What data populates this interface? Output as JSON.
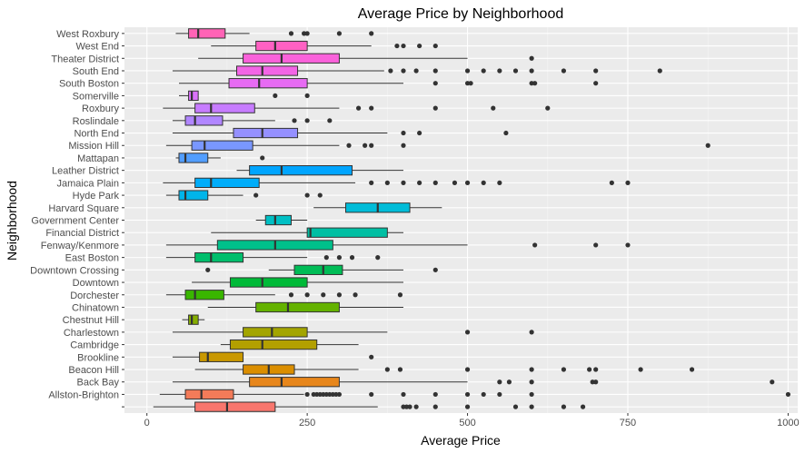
{
  "chart_data": {
    "type": "boxplot",
    "title": "Average Price by Neighborhood",
    "xlabel": "Average Price",
    "ylabel": "Neighborhood",
    "xlim": [
      -35,
      1015
    ],
    "xticks": [
      0,
      250,
      500,
      750,
      1000
    ],
    "xtick_labels": [
      "0",
      "250",
      "500",
      "750",
      "1000"
    ],
    "grid": true,
    "legend": "none",
    "series": [
      {
        "category": "",
        "color": "#F8766D",
        "whisker_low": 10,
        "q1": 75,
        "median": 125,
        "q3": 200,
        "whisker_high": 360,
        "outliers": [
          400,
          405,
          410,
          420,
          450,
          500,
          575,
          600,
          650,
          680
        ]
      },
      {
        "category": "Allston-Brighton",
        "color": "#F37B59",
        "whisker_low": 20,
        "q1": 60,
        "median": 85,
        "q3": 135,
        "whisker_high": 245,
        "outliers": [
          250,
          260,
          265,
          270,
          275,
          280,
          285,
          290,
          295,
          300,
          350,
          400,
          450,
          500,
          525,
          550,
          600,
          1000
        ]
      },
      {
        "category": "Back Bay",
        "color": "#E7861B",
        "whisker_low": 40,
        "q1": 160,
        "median": 210,
        "q3": 300,
        "whisker_high": 500,
        "outliers": [
          550,
          565,
          600,
          695,
          700,
          975
        ]
      },
      {
        "category": "Beacon Hill",
        "color": "#DB8E00",
        "whisker_low": 75,
        "q1": 150,
        "median": 190,
        "q3": 230,
        "whisker_high": 330,
        "outliers": [
          375,
          395,
          500,
          600,
          650,
          690,
          700,
          770,
          850
        ]
      },
      {
        "category": "Brookline",
        "color": "#C99800",
        "whisker_low": 40,
        "q1": 82,
        "median": 95,
        "q3": 150,
        "whisker_high": 150,
        "outliers": [
          350
        ]
      },
      {
        "category": "Cambridge",
        "color": "#B3A000",
        "whisker_low": 115,
        "q1": 130,
        "median": 180,
        "q3": 265,
        "whisker_high": 330,
        "outliers": []
      },
      {
        "category": "Charlestown",
        "color": "#A3A500",
        "whisker_low": 40,
        "q1": 150,
        "median": 195,
        "q3": 250,
        "whisker_high": 375,
        "outliers": [
          500,
          600
        ]
      },
      {
        "category": "Chestnut Hill",
        "color": "#85AD00",
        "whisker_low": 55,
        "q1": 65,
        "median": 70,
        "q3": 80,
        "whisker_high": 90,
        "outliers": []
      },
      {
        "category": "Chinatown",
        "color": "#64B200",
        "whisker_low": 95,
        "q1": 170,
        "median": 220,
        "q3": 300,
        "whisker_high": 400,
        "outliers": []
      },
      {
        "category": "Dorchester",
        "color": "#39B600",
        "whisker_low": 30,
        "q1": 60,
        "median": 75,
        "q3": 120,
        "whisker_high": 200,
        "outliers": [
          225,
          250,
          275,
          300,
          325,
          395
        ]
      },
      {
        "category": "Downtown",
        "color": "#00BA38",
        "whisker_low": 70,
        "q1": 130,
        "median": 180,
        "q3": 250,
        "whisker_high": 400,
        "outliers": []
      },
      {
        "category": "Downtown Crossing",
        "color": "#00BC56",
        "whisker_low": 190,
        "q1": 230,
        "median": 275,
        "q3": 305,
        "whisker_high": 400,
        "outliers": [
          95,
          450
        ]
      },
      {
        "category": "East Boston",
        "color": "#00BE6C",
        "whisker_low": 30,
        "q1": 75,
        "median": 100,
        "q3": 150,
        "whisker_high": 250,
        "outliers": [
          280,
          300,
          320,
          360
        ]
      },
      {
        "category": "Fenway/Kenmore",
        "color": "#00C08B",
        "whisker_low": 30,
        "q1": 110,
        "median": 200,
        "q3": 290,
        "whisker_high": 500,
        "outliers": [
          605,
          700,
          750
        ]
      },
      {
        "category": "Financial District",
        "color": "#00BFA3",
        "whisker_low": 100,
        "q1": 250,
        "median": 255,
        "q3": 375,
        "whisker_high": 400,
        "outliers": []
      },
      {
        "category": "Government Center",
        "color": "#00BFC4",
        "whisker_low": 170,
        "q1": 185,
        "median": 200,
        "q3": 225,
        "whisker_high": 250,
        "outliers": []
      },
      {
        "category": "Harvard Square",
        "color": "#00BCD8",
        "whisker_low": 260,
        "q1": 310,
        "median": 360,
        "q3": 410,
        "whisker_high": 460,
        "outliers": []
      },
      {
        "category": "Hyde Park",
        "color": "#00B5EA",
        "whisker_low": 30,
        "q1": 50,
        "median": 60,
        "q3": 95,
        "whisker_high": 150,
        "outliers": [
          170,
          250,
          270
        ]
      },
      {
        "category": "Jamaica Plain",
        "color": "#00ADFA",
        "whisker_low": 25,
        "q1": 75,
        "median": 100,
        "q3": 175,
        "whisker_high": 325,
        "outliers": [
          350,
          375,
          400,
          425,
          450,
          480,
          500,
          525,
          550,
          725,
          750
        ]
      },
      {
        "category": "Leather District",
        "color": "#00A5FF",
        "whisker_low": 140,
        "q1": 160,
        "median": 210,
        "q3": 320,
        "whisker_high": 400,
        "outliers": []
      },
      {
        "category": "Mattapan",
        "color": "#529EFF",
        "whisker_low": 45,
        "q1": 50,
        "median": 60,
        "q3": 95,
        "whisker_high": 115,
        "outliers": [
          180
        ]
      },
      {
        "category": "Mission Hill",
        "color": "#7997FF",
        "whisker_low": 30,
        "q1": 70,
        "median": 90,
        "q3": 165,
        "whisker_high": 300,
        "outliers": [
          315,
          340,
          350,
          400,
          875
        ]
      },
      {
        "category": "North End",
        "color": "#9590FF",
        "whisker_low": 40,
        "q1": 135,
        "median": 180,
        "q3": 235,
        "whisker_high": 375,
        "outliers": [
          400,
          425,
          560
        ]
      },
      {
        "category": "Roslindale",
        "color": "#B186FF",
        "whisker_low": 40,
        "q1": 60,
        "median": 75,
        "q3": 118,
        "whisker_high": 200,
        "outliers": [
          230,
          250,
          285
        ]
      },
      {
        "category": "Roxbury",
        "color": "#C77CFF",
        "whisker_low": 25,
        "q1": 75,
        "median": 100,
        "q3": 168,
        "whisker_high": 300,
        "outliers": [
          330,
          350,
          450,
          540,
          625
        ]
      },
      {
        "category": "Somerville",
        "color": "#DA72F9",
        "whisker_low": 50,
        "q1": 65,
        "median": 70,
        "q3": 80,
        "whisker_high": 80,
        "outliers": [
          200,
          250
        ]
      },
      {
        "category": "South Boston",
        "color": "#E76BF3",
        "whisker_low": 50,
        "q1": 128,
        "median": 175,
        "q3": 250,
        "whisker_high": 400,
        "outliers": [
          450,
          500,
          505,
          600,
          605,
          700
        ]
      },
      {
        "category": "South End",
        "color": "#F365E6",
        "whisker_low": 40,
        "q1": 140,
        "median": 180,
        "q3": 235,
        "whisker_high": 370,
        "outliers": [
          380,
          400,
          420,
          450,
          500,
          525,
          550,
          575,
          600,
          650,
          700,
          800
        ]
      },
      {
        "category": "Theater District",
        "color": "#FA62DB",
        "whisker_low": 80,
        "q1": 150,
        "median": 210,
        "q3": 300,
        "whisker_high": 500,
        "outliers": [
          600
        ]
      },
      {
        "category": "West End",
        "color": "#FF61C3",
        "whisker_low": 100,
        "q1": 170,
        "median": 200,
        "q3": 250,
        "whisker_high": 350,
        "outliers": [
          390,
          400,
          425,
          450
        ]
      },
      {
        "category": "West Roxbury",
        "color": "#FF63B6",
        "whisker_low": 45,
        "q1": 65,
        "median": 80,
        "q3": 122,
        "whisker_high": 160,
        "outliers": [
          225,
          245,
          250,
          300,
          350
        ]
      }
    ]
  }
}
